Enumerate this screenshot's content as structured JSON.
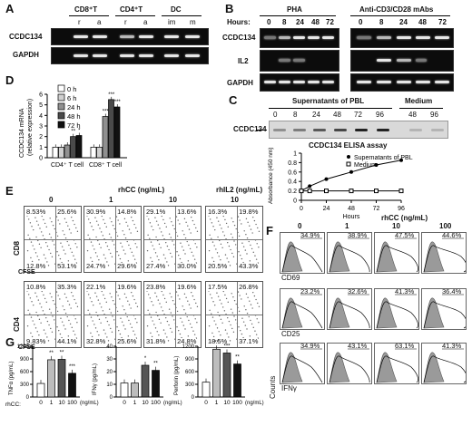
{
  "panels": {
    "A": "A",
    "B": "B",
    "C": "C",
    "D": "D",
    "E": "E",
    "F": "F",
    "G": "G"
  },
  "panelA": {
    "groups": [
      "CD8⁺T",
      "CD4⁺T",
      "DC"
    ],
    "lanes": [
      "r",
      "a",
      "r",
      "a",
      "im",
      "m"
    ],
    "rows": [
      "CCDC134",
      "GAPDH"
    ]
  },
  "panelB": {
    "cond1": "PHA",
    "cond2": "Anti-CD3/CD28 mAbs",
    "hours_label": "Hours:",
    "hours": [
      "0",
      "8",
      "24",
      "48",
      "72"
    ],
    "rows": [
      "CCDC134",
      "IL2",
      "GAPDH"
    ]
  },
  "panelC": {
    "header": "Supernatants of PBL",
    "medium": "Medium",
    "lanes": [
      "0",
      "8",
      "24",
      "48",
      "72",
      "96",
      "48",
      "96"
    ],
    "row": "CCDC134",
    "elisa_title": "CCDC134 ELISA assay",
    "legend": [
      "Supernatants of PBL",
      "Medium"
    ],
    "ylabel": "Absorbance (450 nm)",
    "xlabel": "Hours",
    "xticks": [
      "0",
      "24",
      "48",
      "72",
      "96"
    ],
    "yticks": [
      "0",
      "0.2",
      "0.4",
      "0.6",
      "0.8",
      "1"
    ]
  },
  "panelD": {
    "ylabel": "CCDC134 mRNA (relative expression)",
    "legend": [
      "0 h",
      "6 h",
      "24 h",
      "48 h",
      "72 h"
    ],
    "colors": [
      "#ffffff",
      "#d0d0d0",
      "#909090",
      "#4a4a4a",
      "#111111"
    ],
    "groups": [
      "CD4⁺ T cell",
      "CD8⁺ T cell"
    ],
    "yticks": [
      "0",
      "1",
      "2",
      "3",
      "4",
      "5",
      "6"
    ],
    "sig": [
      "**",
      "*",
      "***",
      "***",
      "***"
    ]
  },
  "panelE": {
    "title": "rhCC (ng/mL)",
    "title2": "rhIL2 (ng/mL)",
    "cols": [
      "0",
      "1",
      "10",
      "10"
    ],
    "row_labels": [
      "CD8",
      "CD4"
    ],
    "xlabel": "CFSE",
    "cd8": [
      [
        "8.53%",
        "25.6%",
        "12.8%",
        "53.1%"
      ],
      [
        "30.9%",
        "14.8%",
        "24.7%",
        "29.6%"
      ],
      [
        "29.1%",
        "13.6%",
        "27.4%",
        "30.0%"
      ],
      [
        "16.3%",
        "19.8%",
        "20.5%",
        "43.3%"
      ]
    ],
    "cd4": [
      [
        "10.8%",
        "35.3%",
        "9.83%",
        "44.1%"
      ],
      [
        "22.1%",
        "19.6%",
        "32.8%",
        "25.6%"
      ],
      [
        "23.8%",
        "19.6%",
        "31.8%",
        "24.8%"
      ],
      [
        "17.5%",
        "26.8%",
        "18.5%",
        "37.1%"
      ]
    ]
  },
  "panelF": {
    "title": "rhCC (ng/mL)",
    "cols": [
      "0",
      "1",
      "10",
      "100"
    ],
    "rows": [
      "CD69",
      "CD25",
      "IFNγ"
    ],
    "ylabel": "Counts",
    "values": [
      [
        "34.9%",
        "38.9%",
        "47.5%",
        "44.6%"
      ],
      [
        "23.2%",
        "32.6%",
        "41.3%",
        "36.4%"
      ],
      [
        "34.9%",
        "43.1%",
        "63.1%",
        "41.3%"
      ]
    ]
  },
  "panelG": {
    "xprefix": "rhCC:",
    "xunit": "(ng/mL)",
    "xcats": [
      "0",
      "1",
      "10",
      "100"
    ],
    "charts": [
      {
        "ylabel": "TNFα (pg/mL)",
        "yticks": [
          "0",
          "300",
          "600",
          "900",
          "1200"
        ],
        "sig": [
          "",
          "**",
          "**",
          "***"
        ]
      },
      {
        "ylabel": "IFNγ (pg/mL)",
        "yticks": [
          "0",
          "10",
          "20",
          "30",
          "40"
        ],
        "sig": [
          "",
          "",
          "*",
          "**"
        ]
      },
      {
        "ylabel": "Perforin (pg/mL)",
        "yticks": [
          "0",
          "300",
          "600",
          "900",
          "1200"
        ],
        "sig": [
          "",
          "**",
          "***",
          "**"
        ]
      }
    ]
  },
  "chart_data": [
    {
      "type": "line",
      "title": "CCDC134 ELISA assay",
      "xlabel": "Hours",
      "ylabel": "Absorbance (450 nm)",
      "x": [
        0,
        8,
        24,
        48,
        72,
        96
      ],
      "xlim": [
        0,
        96
      ],
      "ylim": [
        0,
        1
      ],
      "series": [
        {
          "name": "Supernatants of PBL",
          "values": [
            0.2,
            0.3,
            0.45,
            0.6,
            0.75,
            0.85
          ]
        },
        {
          "name": "Medium",
          "values": [
            0.2,
            0.2,
            0.2,
            0.2,
            0.2,
            0.2
          ]
        }
      ]
    },
    {
      "type": "bar",
      "ylabel": "CCDC134 mRNA (relative expression)",
      "categories": [
        "CD4⁺ T cell",
        "CD8⁺ T cell"
      ],
      "ylim": [
        0,
        6
      ],
      "series": [
        {
          "name": "0 h",
          "values": [
            1.0,
            1.0
          ]
        },
        {
          "name": "6 h",
          "values": [
            1.0,
            1.0
          ]
        },
        {
          "name": "24 h",
          "values": [
            1.2,
            3.9
          ]
        },
        {
          "name": "48 h",
          "values": [
            2.0,
            5.5
          ]
        },
        {
          "name": "72 h",
          "values": [
            2.1,
            4.8
          ]
        }
      ]
    },
    {
      "type": "bar",
      "ylabel": "TNFα (pg/mL)",
      "categories": [
        "0",
        "1",
        "10",
        "100"
      ],
      "values": [
        320,
        880,
        890,
        560
      ],
      "ylim": [
        0,
        1200
      ]
    },
    {
      "type": "bar",
      "ylabel": "IFNγ (pg/mL)",
      "categories": [
        "0",
        "1",
        "10",
        "100"
      ],
      "values": [
        11,
        11,
        25,
        21
      ],
      "ylim": [
        0,
        40
      ]
    },
    {
      "type": "bar",
      "ylabel": "Perforin (pg/mL)",
      "categories": [
        "0",
        "1",
        "10",
        "100"
      ],
      "values": [
        350,
        1130,
        1040,
        780
      ],
      "ylim": [
        0,
        1200
      ]
    }
  ]
}
